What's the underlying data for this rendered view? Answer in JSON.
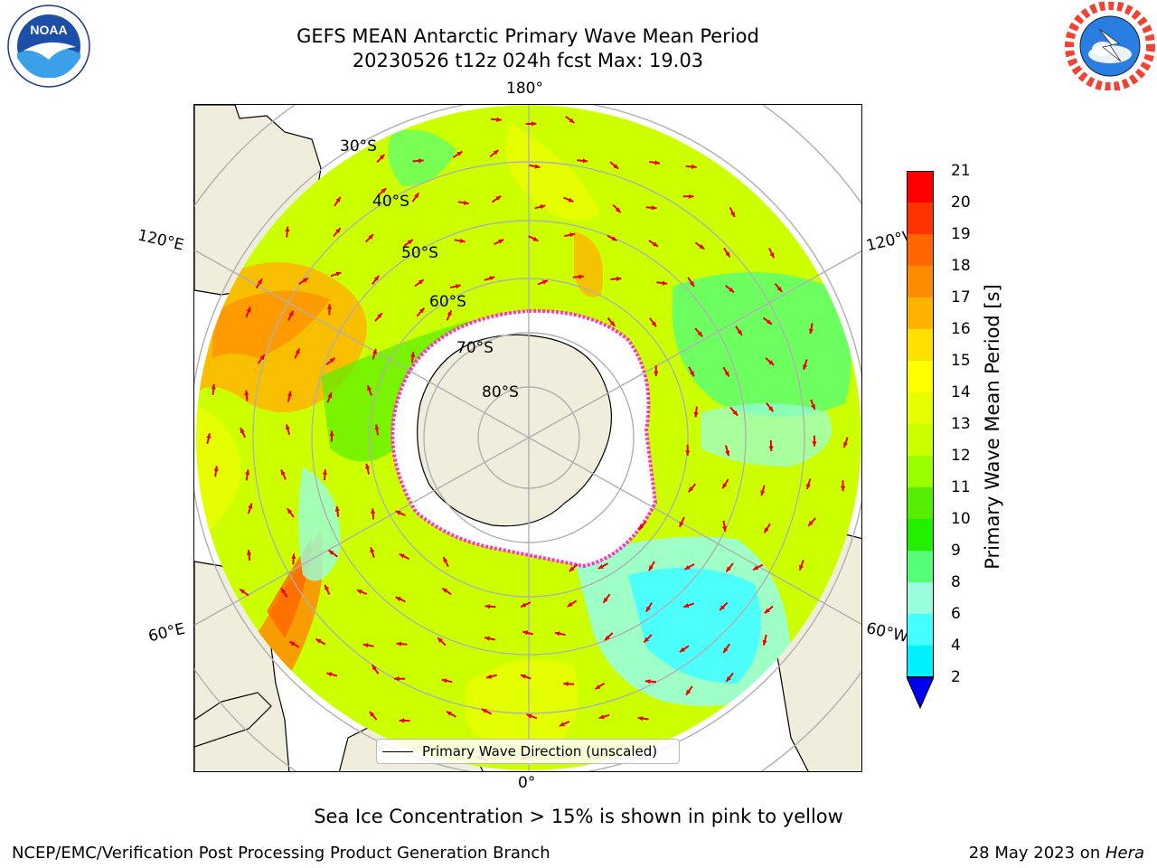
{
  "title": {
    "line1": "GEFS MEAN Antarctic Primary Wave Mean Period",
    "line2": "20230526 t12z 024h fcst   Max: 19.03"
  },
  "logos": {
    "left": "NOAA",
    "left_icon": "noaa-logo",
    "right": "NATIONAL WEATHER SERVICE",
    "right_icon": "nws-logo"
  },
  "map": {
    "projection": "south-polar-stereographic",
    "longitude_labels": {
      "top": "180°",
      "upper_left": "120°E",
      "upper_right": "120°W",
      "lower_left": "60°E",
      "lower_right": "60°W",
      "bottom": "0°"
    },
    "latitude_labels": [
      "30°S",
      "40°S",
      "50°S",
      "60°S",
      "70°S",
      "80°S"
    ],
    "colors": {
      "land": "#efeedc",
      "ice": "#ffffff",
      "ice_edge": "#ff33cc",
      "arrow": "#ee0000",
      "grid": "#b0b0b0"
    }
  },
  "colorbar": {
    "label": "Primary Wave Mean Period [s]",
    "ticks": [
      "21",
      "20",
      "19",
      "18",
      "17",
      "16",
      "15",
      "14",
      "13",
      "12",
      "11",
      "10",
      "9",
      "8",
      "6",
      "4",
      "2"
    ],
    "colors": [
      "#ff0000",
      "#ff3300",
      "#ff6600",
      "#ff8c00",
      "#ffb300",
      "#ffe000",
      "#ffff00",
      "#e6ff00",
      "#ccff00",
      "#99ff00",
      "#55ee00",
      "#22ee00",
      "#55ff77",
      "#99ffdd",
      "#44ffff",
      "#00f0ff",
      "#00ccff",
      "#0066ff"
    ],
    "extend_color": "#0000ee"
  },
  "legend": {
    "label": "Primary Wave Direction (unscaled)"
  },
  "footer": {
    "ice_note": "Sea Ice Concentration > 15% is shown in pink to yellow",
    "credit": "NCEP/EMC/Verification Post Processing Product Generation Branch",
    "date": "28 May 2023 on ",
    "host": "Hera"
  }
}
